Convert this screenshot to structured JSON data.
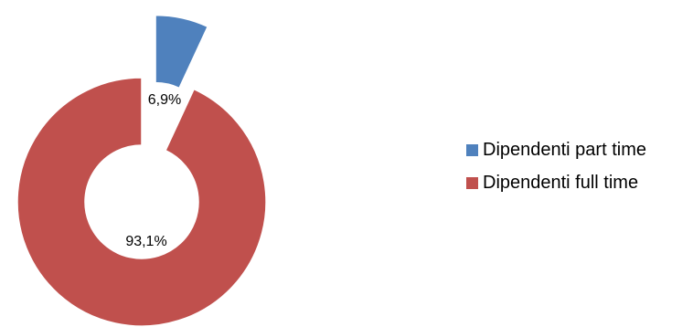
{
  "chart_data": {
    "type": "pie",
    "variant": "donut",
    "title": "",
    "legend_position": "right",
    "exploded_slice": "Dipendenti part time",
    "slices": [
      {
        "name": "Dipendenti part time",
        "value": 6.9,
        "label": "6,9%",
        "color": "#4f81bd"
      },
      {
        "name": "Dipendenti full time",
        "value": 93.1,
        "label": "93,1%",
        "color": "#c0504d"
      }
    ]
  }
}
